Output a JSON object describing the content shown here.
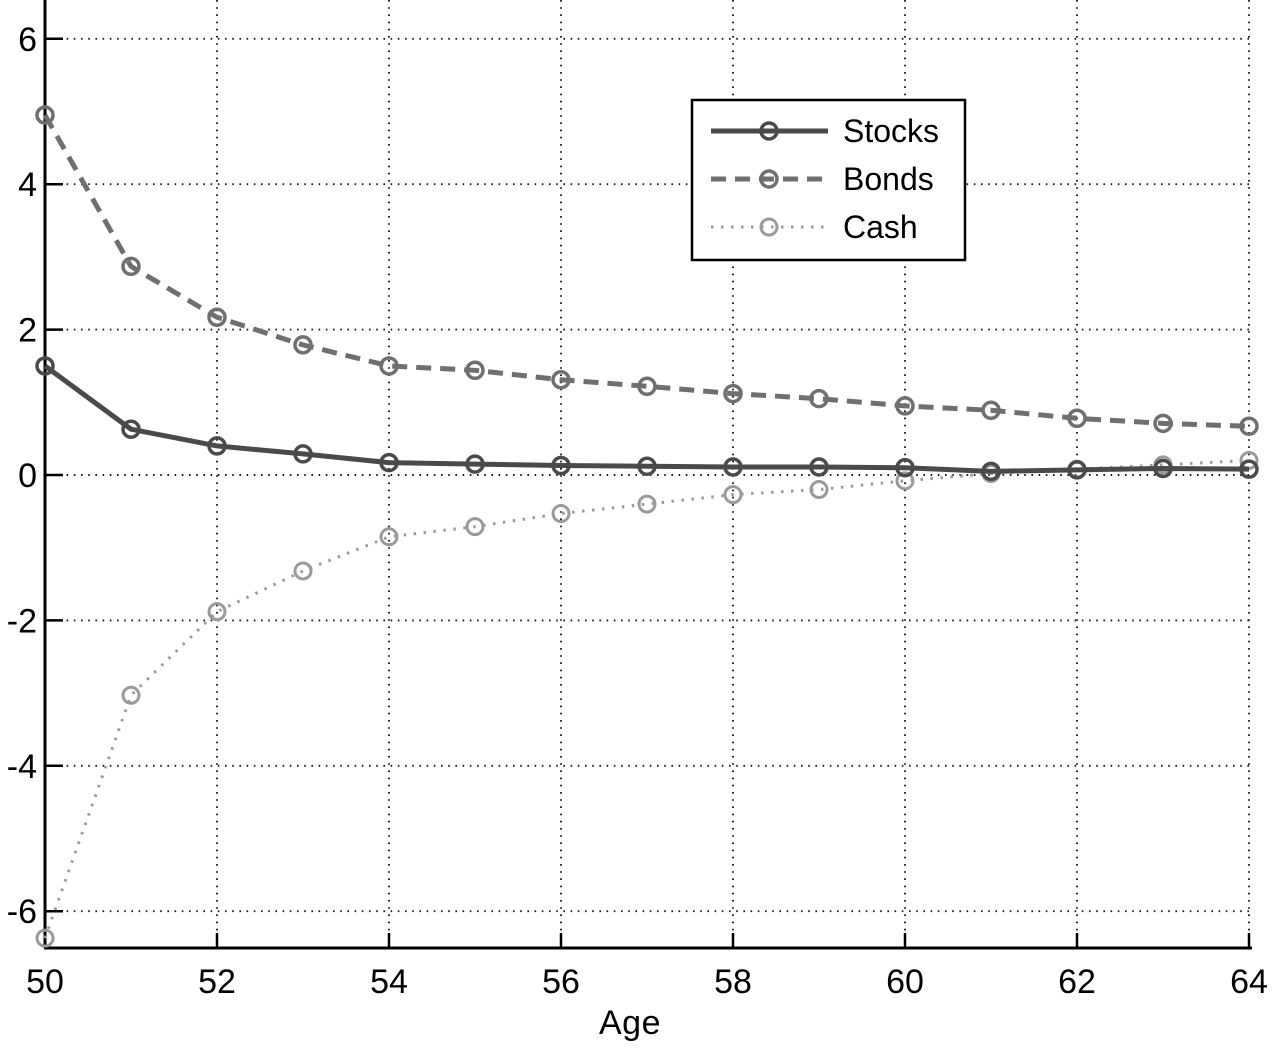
{
  "chart_data": {
    "type": "line",
    "title": "",
    "xlabel": "Age",
    "ylabel": "",
    "x": [
      50,
      51,
      52,
      53,
      54,
      55,
      56,
      57,
      58,
      59,
      60,
      61,
      62,
      63,
      64
    ],
    "series": [
      {
        "name": "Stocks",
        "line_style": "solid",
        "marker": "circle",
        "color": "#4a4a4a",
        "line_width": 5,
        "values": [
          1.5,
          0.63,
          0.4,
          0.29,
          0.17,
          0.15,
          0.13,
          0.12,
          0.11,
          0.11,
          0.1,
          0.05,
          0.07,
          0.09,
          0.08
        ]
      },
      {
        "name": "Bonds",
        "line_style": "dashed",
        "marker": "circle",
        "color": "#6f6f6f",
        "line_width": 5,
        "values": [
          4.95,
          2.87,
          2.17,
          1.79,
          1.5,
          1.44,
          1.31,
          1.22,
          1.12,
          1.05,
          0.95,
          0.89,
          0.78,
          0.71,
          0.67
        ]
      },
      {
        "name": "Cash",
        "line_style": "dotted",
        "marker": "circle",
        "color": "#9a9a9a",
        "line_width": 3,
        "values": [
          -6.37,
          -3.03,
          -1.88,
          -1.32,
          -0.85,
          -0.71,
          -0.53,
          -0.4,
          -0.27,
          -0.2,
          -0.08,
          0.02,
          0.08,
          0.14,
          0.2
        ]
      }
    ],
    "xticks": [
      50,
      52,
      54,
      56,
      58,
      60,
      62,
      64
    ],
    "yticks": [
      6,
      4,
      2,
      0,
      -2,
      -4,
      -6
    ],
    "xlim": [
      50,
      64
    ],
    "ylim": [
      -6.5,
      6.53
    ],
    "grid": true,
    "legend_position": "upper-right-inside"
  },
  "colors": {
    "background": "#ffffff",
    "axis": "#000000",
    "grid_dots": "#1c1c1c",
    "text": "#000000",
    "legend_border": "#000000",
    "legend_fill": "#ffffff"
  }
}
